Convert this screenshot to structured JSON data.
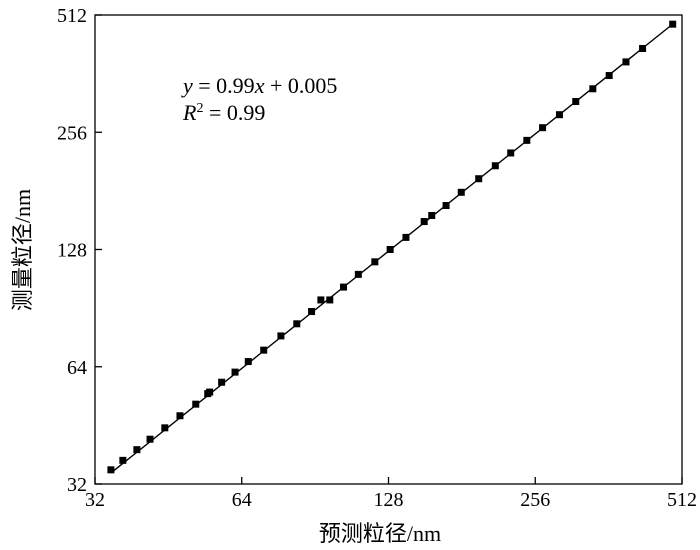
{
  "chart_data": {
    "type": "scatter",
    "x_scale": "log2",
    "y_scale": "log2",
    "xlabel": "预测粒径/nm",
    "ylabel": "测量粒径/nm",
    "xlim": [
      32,
      512
    ],
    "ylim": [
      32,
      512
    ],
    "x_ticks": [
      32,
      64,
      128,
      256,
      512
    ],
    "y_ticks": [
      32,
      64,
      128,
      256,
      512
    ],
    "x_tick_labels": [
      "32",
      "64",
      "128",
      "256",
      "512"
    ],
    "y_tick_labels": [
      "32",
      "64",
      "128",
      "256",
      "512"
    ],
    "grid": false,
    "marker_color": "#000000",
    "line_color": "#000000",
    "annotations": {
      "equation": {
        "y": "y",
        "eq": " = 0.99",
        "x": "x",
        "rest": " + 0.005"
      },
      "r2": {
        "r": "R",
        "sup": "2",
        "rest": " = 0.99"
      }
    },
    "fit_line": {
      "slope": 0.99,
      "intercept": 0.005,
      "x_range": [
        34.5,
        490
      ]
    },
    "series": [
      {
        "points": [
          [
            34.5,
            34.8
          ],
          [
            36.5,
            36.8
          ],
          [
            39.0,
            39.2
          ],
          [
            41.5,
            41.7
          ],
          [
            44.5,
            44.6
          ],
          [
            47.8,
            47.9
          ],
          [
            51.5,
            51.3
          ],
          [
            54.5,
            54.6
          ],
          [
            55.0,
            55.1
          ],
          [
            58.2,
            58.4
          ],
          [
            62.0,
            62.0
          ],
          [
            66.0,
            66.0
          ],
          [
            71.0,
            70.6
          ],
          [
            77.0,
            76.8
          ],
          [
            83.0,
            82.5
          ],
          [
            89.0,
            88.7
          ],
          [
            93.0,
            95.0
          ],
          [
            97.0,
            95.0
          ],
          [
            103.5,
            102.5
          ],
          [
            111.0,
            110.5
          ],
          [
            120.0,
            119.0
          ],
          [
            129.0,
            128.0
          ],
          [
            139.0,
            137.5
          ],
          [
            151.5,
            151.0
          ],
          [
            157.0,
            156.5
          ],
          [
            168.0,
            166.0
          ],
          [
            180.5,
            179.5
          ],
          [
            196.0,
            194.5
          ],
          [
            212.0,
            210.0
          ],
          [
            228.0,
            226.5
          ],
          [
            246.0,
            244.0
          ],
          [
            265.0,
            263.0
          ],
          [
            287.0,
            284.0
          ],
          [
            310.0,
            307.0
          ],
          [
            336.0,
            331.0
          ],
          [
            363.0,
            358.0
          ],
          [
            393.0,
            388.0
          ],
          [
            425.0,
            420.0
          ],
          [
            490.0,
            485.0
          ]
        ]
      }
    ]
  }
}
